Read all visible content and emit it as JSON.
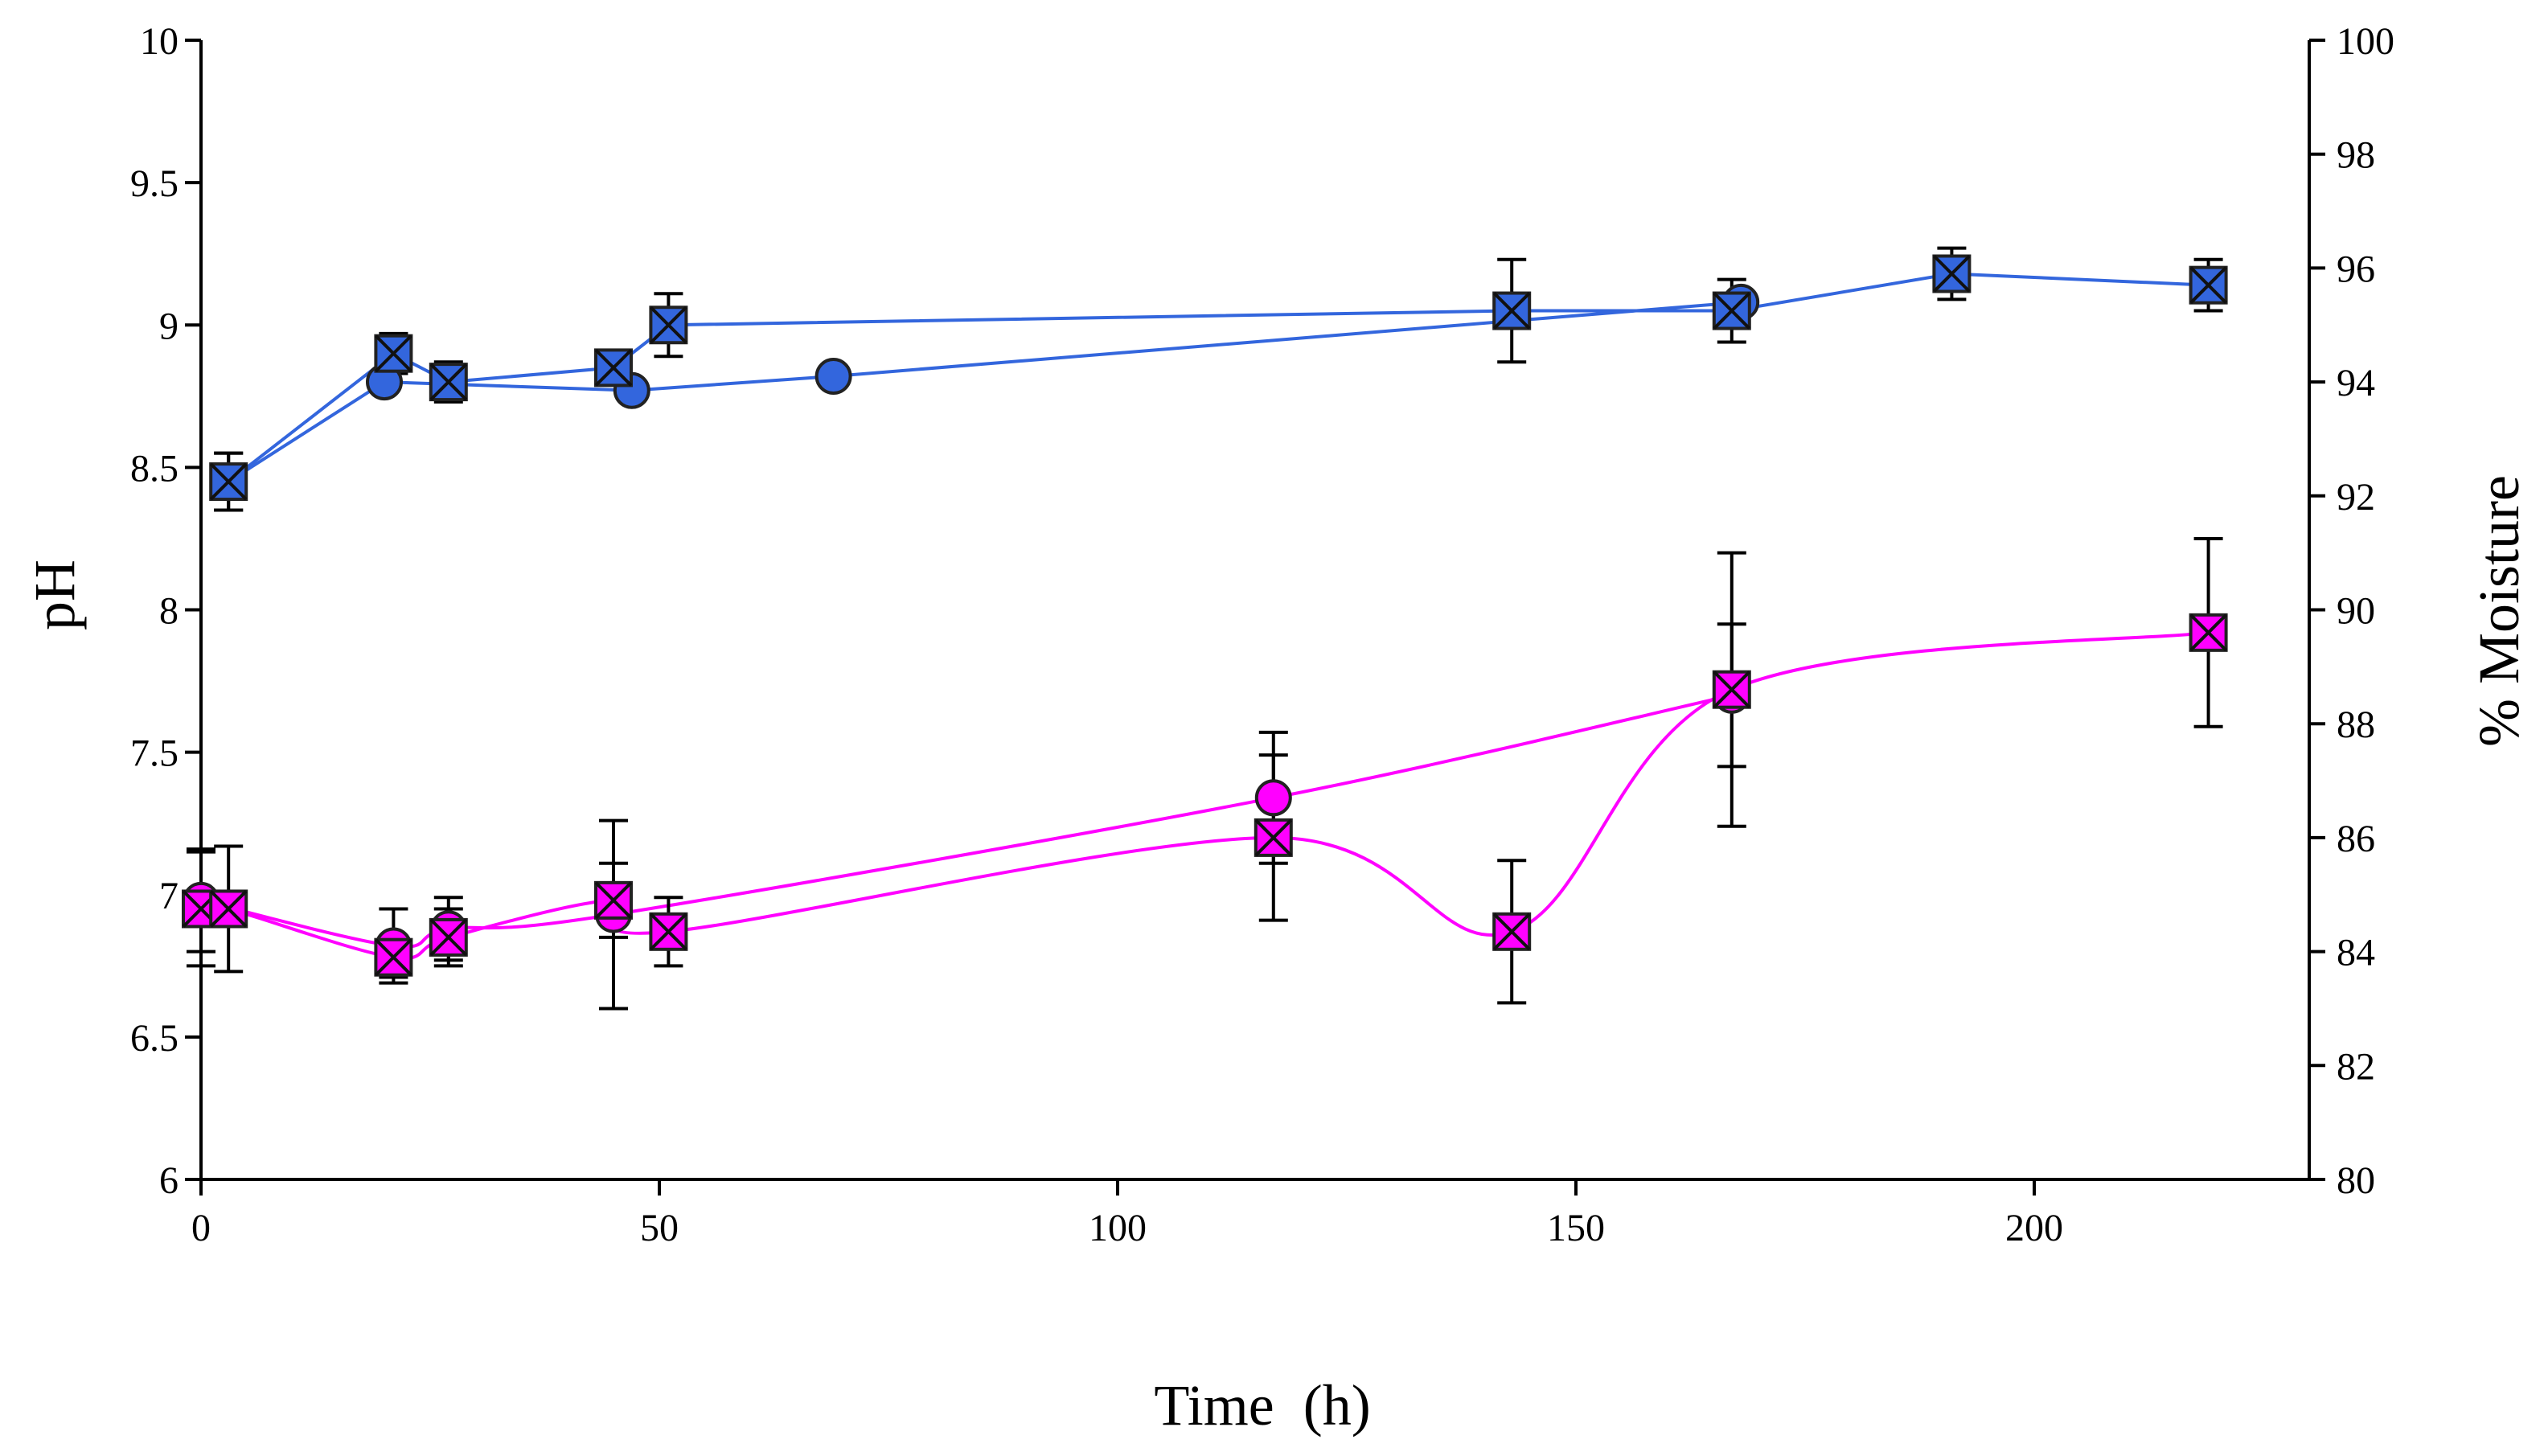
{
  "chart_data": {
    "type": "line",
    "title": "",
    "xlabel": "Time  (h)",
    "ylabel": "pH",
    "y2label": "% Moisture",
    "xlim": [
      0,
      230
    ],
    "ylim": [
      6,
      10
    ],
    "y2lim": [
      80,
      100
    ],
    "xticks": [
      "0",
      "50",
      "100",
      "150",
      "200"
    ],
    "yticks": [
      "6",
      "6.5",
      "7",
      "7.5",
      "8",
      "8.5",
      "9",
      "9.5",
      "10"
    ],
    "y2ticks": [
      "80",
      "82",
      "84",
      "86",
      "88",
      "90",
      "92",
      "94",
      "96",
      "98",
      "100"
    ],
    "legend": "none",
    "grid": false,
    "series": [
      {
        "name": "blue-circle",
        "color": "#3366dd",
        "marker": "circle",
        "axis": "left",
        "smooth": false,
        "points": [
          [
            3,
            8.45,
            0.1
          ],
          [
            20,
            8.8,
            0
          ],
          [
            47,
            8.77,
            0
          ],
          [
            69,
            8.82,
            0
          ],
          [
            168,
            9.08,
            0
          ]
        ]
      },
      {
        "name": "blue-square",
        "color": "#3366dd",
        "marker": "square-x",
        "axis": "left",
        "smooth": false,
        "points": [
          [
            3,
            8.45,
            0.1
          ],
          [
            21,
            8.9,
            0.07
          ],
          [
            27,
            8.8,
            0.07
          ],
          [
            45,
            8.85,
            0.05
          ],
          [
            51,
            9.0,
            0.11
          ],
          [
            143,
            9.05,
            0.18
          ],
          [
            167,
            9.05,
            0.11
          ],
          [
            191,
            9.18,
            0.09
          ],
          [
            219,
            9.14,
            0.09
          ]
        ]
      },
      {
        "name": "magenta-circle",
        "color": "#ff00ff",
        "marker": "circle",
        "axis": "left",
        "smooth": true,
        "points": [
          [
            0,
            6.98,
            0.18
          ],
          [
            21,
            6.82,
            0.13
          ],
          [
            27,
            6.88,
            0.11
          ],
          [
            45,
            6.93,
            0.33
          ],
          [
            117,
            7.34,
            0.23
          ],
          [
            167,
            7.7,
            0.25
          ]
        ]
      },
      {
        "name": "magenta-square",
        "color": "#ff00ff",
        "marker": "square-x",
        "axis": "left",
        "smooth": true,
        "points": [
          [
            0,
            6.95,
            0.2
          ],
          [
            3,
            6.95,
            0.22
          ],
          [
            21,
            6.78,
            0.07
          ],
          [
            27,
            6.85,
            0.1
          ],
          [
            45,
            6.98,
            0.13
          ],
          [
            51,
            6.87,
            0.12
          ],
          [
            117,
            7.2,
            0.29
          ],
          [
            143,
            6.87,
            0.25
          ],
          [
            167,
            7.72,
            0.48
          ],
          [
            219,
            7.92,
            0.33
          ]
        ]
      }
    ]
  }
}
